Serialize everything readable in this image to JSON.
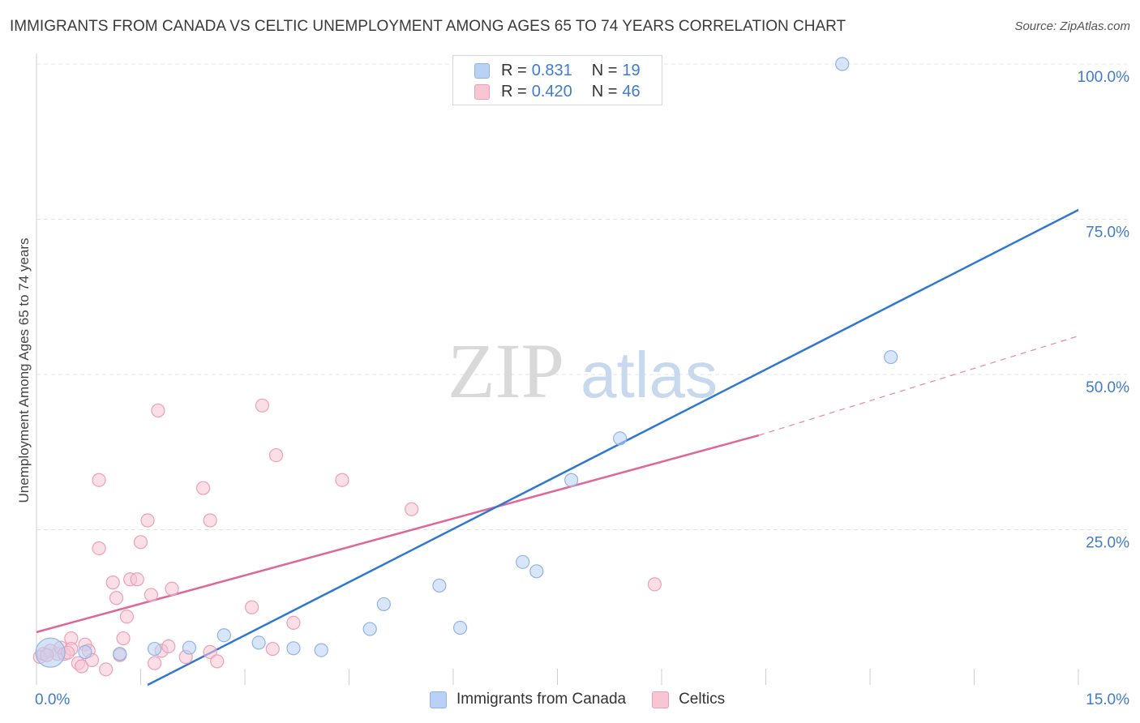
{
  "title": "IMMIGRANTS FROM CANADA VS CELTIC UNEMPLOYMENT AMONG AGES 65 TO 74 YEARS CORRELATION CHART",
  "source": "Source: ZipAtlas.com",
  "watermark": {
    "zip": "ZIP",
    "atlas": "atlas"
  },
  "legend": {
    "rows": [
      {
        "r_label": "R =",
        "r_value": "0.831",
        "n_label": "N =",
        "n_value": "19"
      },
      {
        "r_label": "R =",
        "r_value": "0.420",
        "n_label": "N =",
        "n_value": "46"
      }
    ]
  },
  "bottom_legend": {
    "items": [
      "Immigrants from Canada",
      "Celtics"
    ]
  },
  "colors": {
    "blue_fill": "#b9d1f4",
    "blue_stroke": "#8fb3e8",
    "blue_line": "#2f78d2",
    "pink_fill": "#f8c5d3",
    "pink_stroke": "#ec9fb6",
    "pink_line": "#e0679a",
    "tick_text": "#3f7bd0",
    "grid": "#e4e4e4"
  },
  "chart_data": {
    "type": "scatter",
    "title": "IMMIGRANTS FROM CANADA VS CELTIC UNEMPLOYMENT AMONG AGES 65 TO 74 YEARS CORRELATION CHART",
    "xlabel": "",
    "ylabel": "Unemployment Among Ages 65 to 74 years",
    "xlim": [
      0,
      15
    ],
    "ylim": [
      0,
      100
    ],
    "x_tick_labels": [
      "0.0%",
      "15.0%"
    ],
    "y_ticks": [
      25,
      50,
      75,
      100
    ],
    "y_tick_labels": [
      "25.0%",
      "50.0%",
      "75.0%",
      "100.0%"
    ],
    "grid": true,
    "series": [
      {
        "name": "Immigrants from Canada",
        "color": "blue",
        "points": [
          [
            0.2,
            5.2
          ],
          [
            0.7,
            5.3
          ],
          [
            1.2,
            5.0
          ],
          [
            1.7,
            5.8
          ],
          [
            2.2,
            6.0
          ],
          [
            2.7,
            8.0
          ],
          [
            3.2,
            6.8
          ],
          [
            3.7,
            5.9
          ],
          [
            4.1,
            5.6
          ],
          [
            4.8,
            9.0
          ],
          [
            5.0,
            13.0
          ],
          [
            5.8,
            16.0
          ],
          [
            6.1,
            9.2
          ],
          [
            7.0,
            19.8
          ],
          [
            7.2,
            18.3
          ],
          [
            7.7,
            33.0
          ],
          [
            8.4,
            39.7
          ],
          [
            11.6,
            100.0
          ],
          [
            12.3,
            52.8
          ]
        ],
        "trendline": {
          "x": [
            1.6,
            15.0
          ],
          "y": [
            0.0,
            76.5
          ]
        }
      },
      {
        "name": "Celtics",
        "color": "pink",
        "points": [
          [
            0.05,
            4.5
          ],
          [
            0.1,
            5.0
          ],
          [
            0.2,
            5.5
          ],
          [
            0.3,
            5.0
          ],
          [
            0.35,
            6.0
          ],
          [
            0.4,
            5.0
          ],
          [
            0.5,
            7.5
          ],
          [
            0.5,
            5.8
          ],
          [
            0.6,
            3.5
          ],
          [
            0.65,
            3.0
          ],
          [
            0.7,
            6.5
          ],
          [
            0.75,
            5.5
          ],
          [
            0.8,
            4.0
          ],
          [
            0.9,
            33.0
          ],
          [
            0.9,
            22.0
          ],
          [
            1.0,
            2.5
          ],
          [
            1.1,
            16.5
          ],
          [
            1.15,
            14.0
          ],
          [
            1.2,
            4.8
          ],
          [
            1.25,
            7.5
          ],
          [
            1.3,
            11.0
          ],
          [
            1.35,
            17.0
          ],
          [
            1.45,
            17.0
          ],
          [
            1.5,
            23.0
          ],
          [
            1.6,
            26.5
          ],
          [
            1.65,
            14.5
          ],
          [
            1.7,
            3.5
          ],
          [
            1.75,
            44.2
          ],
          [
            1.8,
            5.5
          ],
          [
            1.9,
            6.2
          ],
          [
            1.95,
            15.5
          ],
          [
            2.15,
            4.5
          ],
          [
            2.4,
            31.7
          ],
          [
            2.5,
            5.3
          ],
          [
            2.5,
            26.5
          ],
          [
            2.6,
            3.8
          ],
          [
            3.1,
            12.5
          ],
          [
            3.25,
            45.0
          ],
          [
            3.4,
            5.8
          ],
          [
            3.45,
            37.0
          ],
          [
            3.7,
            10.0
          ],
          [
            4.4,
            33.0
          ],
          [
            5.4,
            28.3
          ],
          [
            8.9,
            16.2
          ],
          [
            0.15,
            4.8
          ],
          [
            0.45,
            5.2
          ]
        ],
        "trendline": {
          "x": [
            0.0,
            10.4
          ],
          "y": [
            8.5,
            40.2
          ]
        },
        "trendline_dashed": {
          "x": [
            10.4,
            15.0
          ],
          "y": [
            40.2,
            56.2
          ]
        }
      }
    ],
    "large_points": [
      {
        "series": "Immigrants from Canada",
        "point": [
          0.2,
          5.2
        ]
      }
    ]
  }
}
